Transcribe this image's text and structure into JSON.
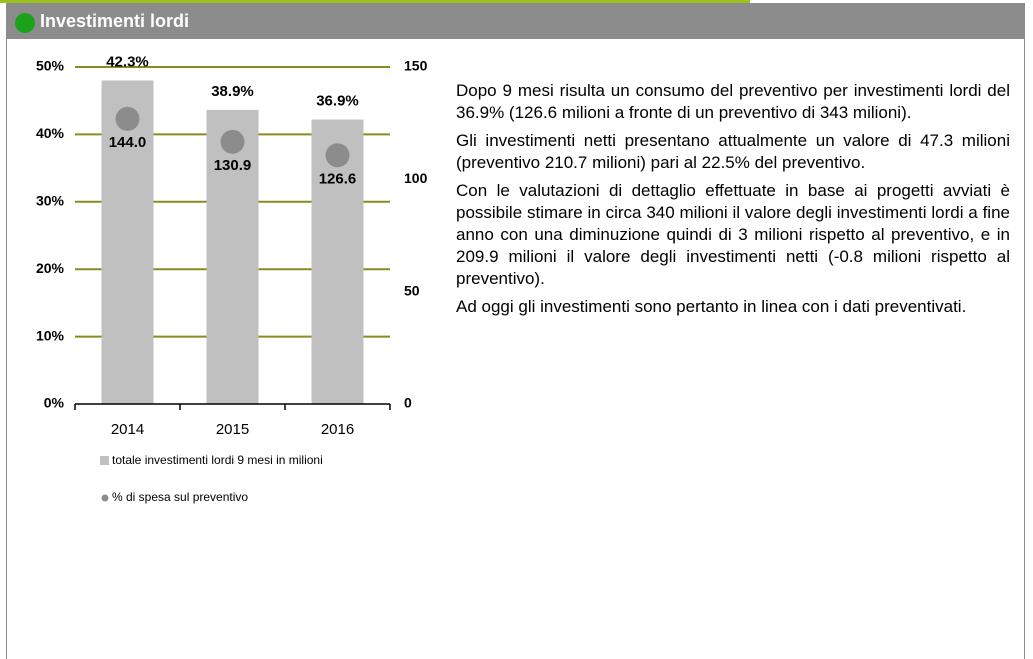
{
  "header": {
    "title": "Investimenti lordi"
  },
  "chart_data": {
    "type": "bar",
    "categories": [
      "2014",
      "2015",
      "2016"
    ],
    "series": [
      {
        "name": "totale investimenti lordi 9 mesi in milioni",
        "color": "#c0c0c0",
        "axis": "y2",
        "values": [
          144.0,
          130.9,
          126.6
        ],
        "value_labels": [
          "144.0",
          "130.9",
          "126.6"
        ]
      },
      {
        "name": "% di spesa sul preventivo",
        "color": "#8c8c8c",
        "type": "scatter",
        "values": [
          42.3,
          38.9,
          36.9
        ],
        "value_labels": [
          "42.3%",
          "38.9%",
          "36.9%"
        ]
      }
    ],
    "ylim": [
      0,
      50
    ],
    "yticks": [
      {
        "value": 0,
        "label": "0%"
      },
      {
        "value": 10,
        "label": "10%"
      },
      {
        "value": 20,
        "label": "20%"
      },
      {
        "value": 30,
        "label": "30%"
      },
      {
        "value": 40,
        "label": "40%"
      },
      {
        "value": 50,
        "label": "50%"
      }
    ],
    "y2lim": [
      0,
      150
    ],
    "y2ticks": [
      0,
      50,
      100,
      150
    ],
    "grid": true,
    "grid_color": "#8a8a1e"
  },
  "paragraphs": [
    "Dopo 9 mesi risulta un consumo del preventivo per investimenti lordi del 36.9% (126.6 milioni a fronte di un preventivo di 343 milioni).",
    "Gli investimenti netti presentano attualmente un valore di 47.3 milioni (preventivo 210.7 milioni) pari al 22.5% del preventivo.",
    "Con le valutazioni di dettaglio effettuate in base ai progetti avviati è possibile stimare in circa 340 milioni il valore degli investimenti lordi a fine anno con una diminuzione quindi di 3 milioni rispetto al preventivo, e in 209.9 milioni il valore degli investimenti netti (-0.8 milioni rispetto al preventivo).",
    "Ad oggi gli investimenti sono pertanto in linea con i dati preventivati."
  ]
}
